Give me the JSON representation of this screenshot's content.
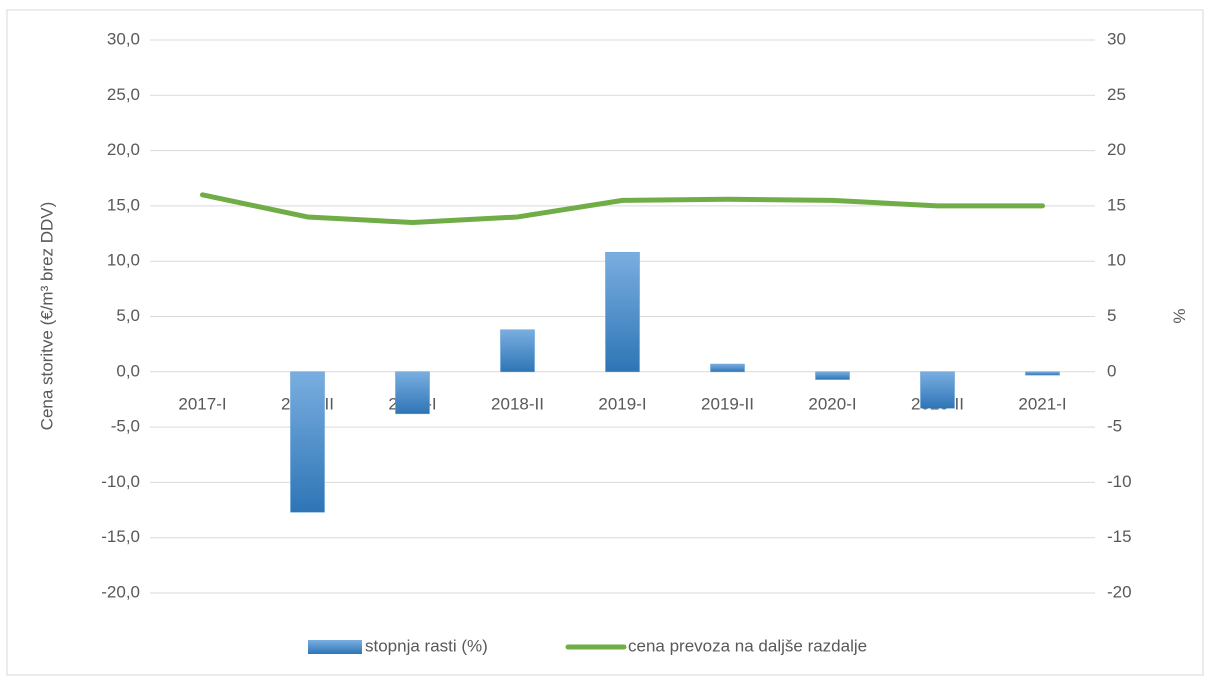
{
  "chart_data": {
    "type": "bar",
    "ylabel": "Cena storitve (€/m³ brez DDV)",
    "y2label": "%",
    "categories": [
      "2017-I",
      "2017-II",
      "2018-I",
      "2018-II",
      "2019-I",
      "2019-II",
      "2020-I",
      "2020-II",
      "2021-I"
    ],
    "series": [
      {
        "name": "stopnja rasti (%)",
        "type": "bar",
        "axis": "y2",
        "color": "#5b9bd5",
        "values": [
          null,
          -12.7,
          -3.8,
          3.8,
          10.8,
          0.7,
          -0.7,
          -3.3,
          -0.3
        ]
      },
      {
        "name": "cena prevoza na daljše razdalje",
        "type": "line",
        "axis": "y",
        "color": "#70ad47",
        "values": [
          16.0,
          14.0,
          13.5,
          14.0,
          15.5,
          15.6,
          15.5,
          15.0,
          15.0
        ]
      }
    ],
    "ylim": [
      -20,
      30
    ],
    "yticks": [
      {
        "value": -20,
        "label": "-20,0"
      },
      {
        "value": -15,
        "label": "-15,0"
      },
      {
        "value": -10,
        "label": "-10,0"
      },
      {
        "value": -5,
        "label": "-5,0"
      },
      {
        "value": 0,
        "label": "0,0"
      },
      {
        "value": 5,
        "label": "5,0"
      },
      {
        "value": 10,
        "label": "10,0"
      },
      {
        "value": 15,
        "label": "15,0"
      },
      {
        "value": 20,
        "label": "20,0"
      },
      {
        "value": 25,
        "label": "25,0"
      },
      {
        "value": 30,
        "label": "30,0"
      }
    ],
    "y2lim": [
      -20,
      30
    ],
    "y2ticks": [
      -20,
      -15,
      -10,
      -5,
      0,
      5,
      10,
      15,
      20,
      25,
      30
    ],
    "grid": true,
    "legend": "bottom"
  }
}
